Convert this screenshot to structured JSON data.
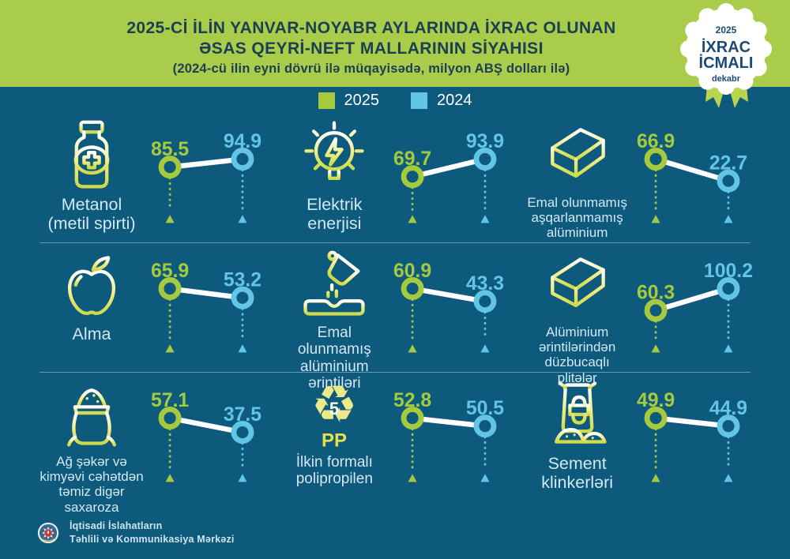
{
  "header": {
    "title_line1": "2025-Cİ İLİN YANVAR-NOYABR AYLARINDA İXRAC OLUNAN",
    "title_line2": "ƏSAS QEYRİ-NEFT MALLARININ SİYAHISI",
    "subtitle": "(2024-cü ilin eyni dövrü ilə müqayisədə, milyon ABŞ dolları ilə)",
    "badge": {
      "year": "2025",
      "line1": "İXRAC",
      "line2": "İCMALI",
      "month": "dekabr"
    }
  },
  "legend": {
    "items": [
      {
        "label": "2025",
        "color": "#a5ca3e"
      },
      {
        "label": "2024",
        "color": "#62c5e6"
      }
    ]
  },
  "chart_data": {
    "type": "slope",
    "unit": "milyon ABŞ dolları",
    "series_labels": [
      "2025",
      "2024"
    ],
    "icons_text": {
      "number": "5",
      "code": "PP"
    },
    "items": [
      {
        "label": "Metanol (metil spirti)",
        "icon": "medicine-bottle-icon",
        "v2025": 85.5,
        "v2024": 94.9
      },
      {
        "label": "Elektrik enerjisi",
        "icon": "light-bulb-energy-icon",
        "v2025": 69.7,
        "v2024": 93.9
      },
      {
        "label": "Emal olunmamış aşqarlanmamış alüminium",
        "icon": "aluminium-ingot-icon",
        "v2025": 66.9,
        "v2024": 22.7
      },
      {
        "label": "Alma",
        "icon": "apple-icon",
        "v2025": 65.9,
        "v2024": 53.2
      },
      {
        "label": "Emal olunmamış alüminium ərintiləri",
        "icon": "metal-casting-icon",
        "v2025": 60.9,
        "v2024": 43.3
      },
      {
        "label": "Alüminium ərintilərindən düzbucaqlı plitələr",
        "icon": "aluminium-ingot-icon",
        "v2025": 60.3,
        "v2024": 100.2
      },
      {
        "label": "Ağ şəkər və kimyəvi cəhətdən təmiz digər saxaroza",
        "icon": "sugar-sack-icon",
        "v2025": 57.1,
        "v2024": 37.5
      },
      {
        "label": "İlkin formalı polipropilen",
        "icon": "recycle-pp-icon",
        "v2025": 52.8,
        "v2024": 50.5
      },
      {
        "label": "Sement klinkerləri",
        "icon": "cement-bag-icon",
        "v2025": 49.9,
        "v2024": 44.9
      }
    ]
  },
  "footer": {
    "org_line1": "İqtisadi İslahatların",
    "org_line2": "Təhlili və Kommunikasiya Mərkəzi"
  },
  "colors": {
    "bg": "#0d5a7d",
    "header_green": "#a9cc4a",
    "green": "#a5ca3e",
    "cyan": "#62c5e6",
    "title_navy": "#1c3e53",
    "badge_navy": "#1b4a75",
    "label_text": "#d3e8f1",
    "line_white": "#ffffff",
    "ribbon": "#b9d44f"
  }
}
